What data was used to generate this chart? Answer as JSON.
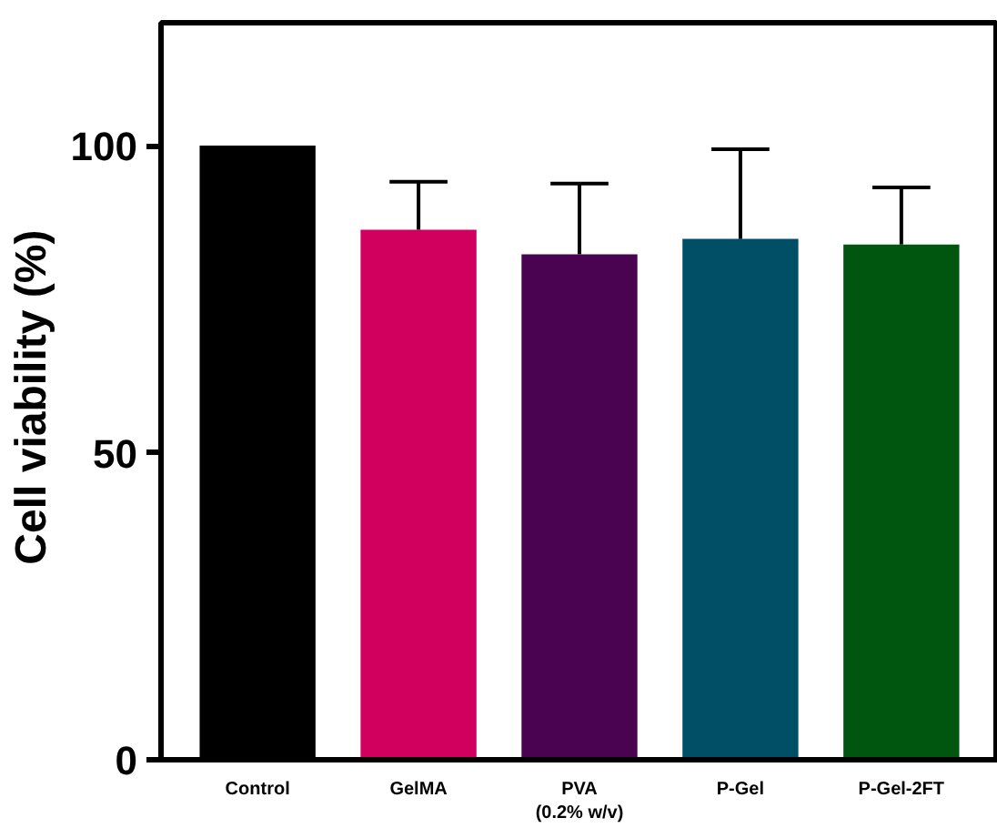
{
  "chart_data": {
    "type": "bar",
    "ylabel": "Cell viability  (%)",
    "categories": [
      "Control",
      "GelMA",
      "PVA\n(0.2% w/v)",
      "P-Gel",
      "P-Gel-2FT"
    ],
    "values": [
      100,
      86.3,
      82.3,
      84.8,
      83.9
    ],
    "colors": [
      "#000000",
      "#d1005f",
      "#4a0350",
      "#004f66",
      "#00560f"
    ],
    "errors": [
      null,
      [
        86.3,
        94.1
      ],
      [
        82.3,
        93.8
      ],
      [
        84.8,
        99.4
      ],
      [
        83.9,
        93.2
      ]
    ],
    "ylim": [
      0,
      120
    ],
    "yticks": [
      0,
      50,
      100
    ],
    "grid": false
  }
}
